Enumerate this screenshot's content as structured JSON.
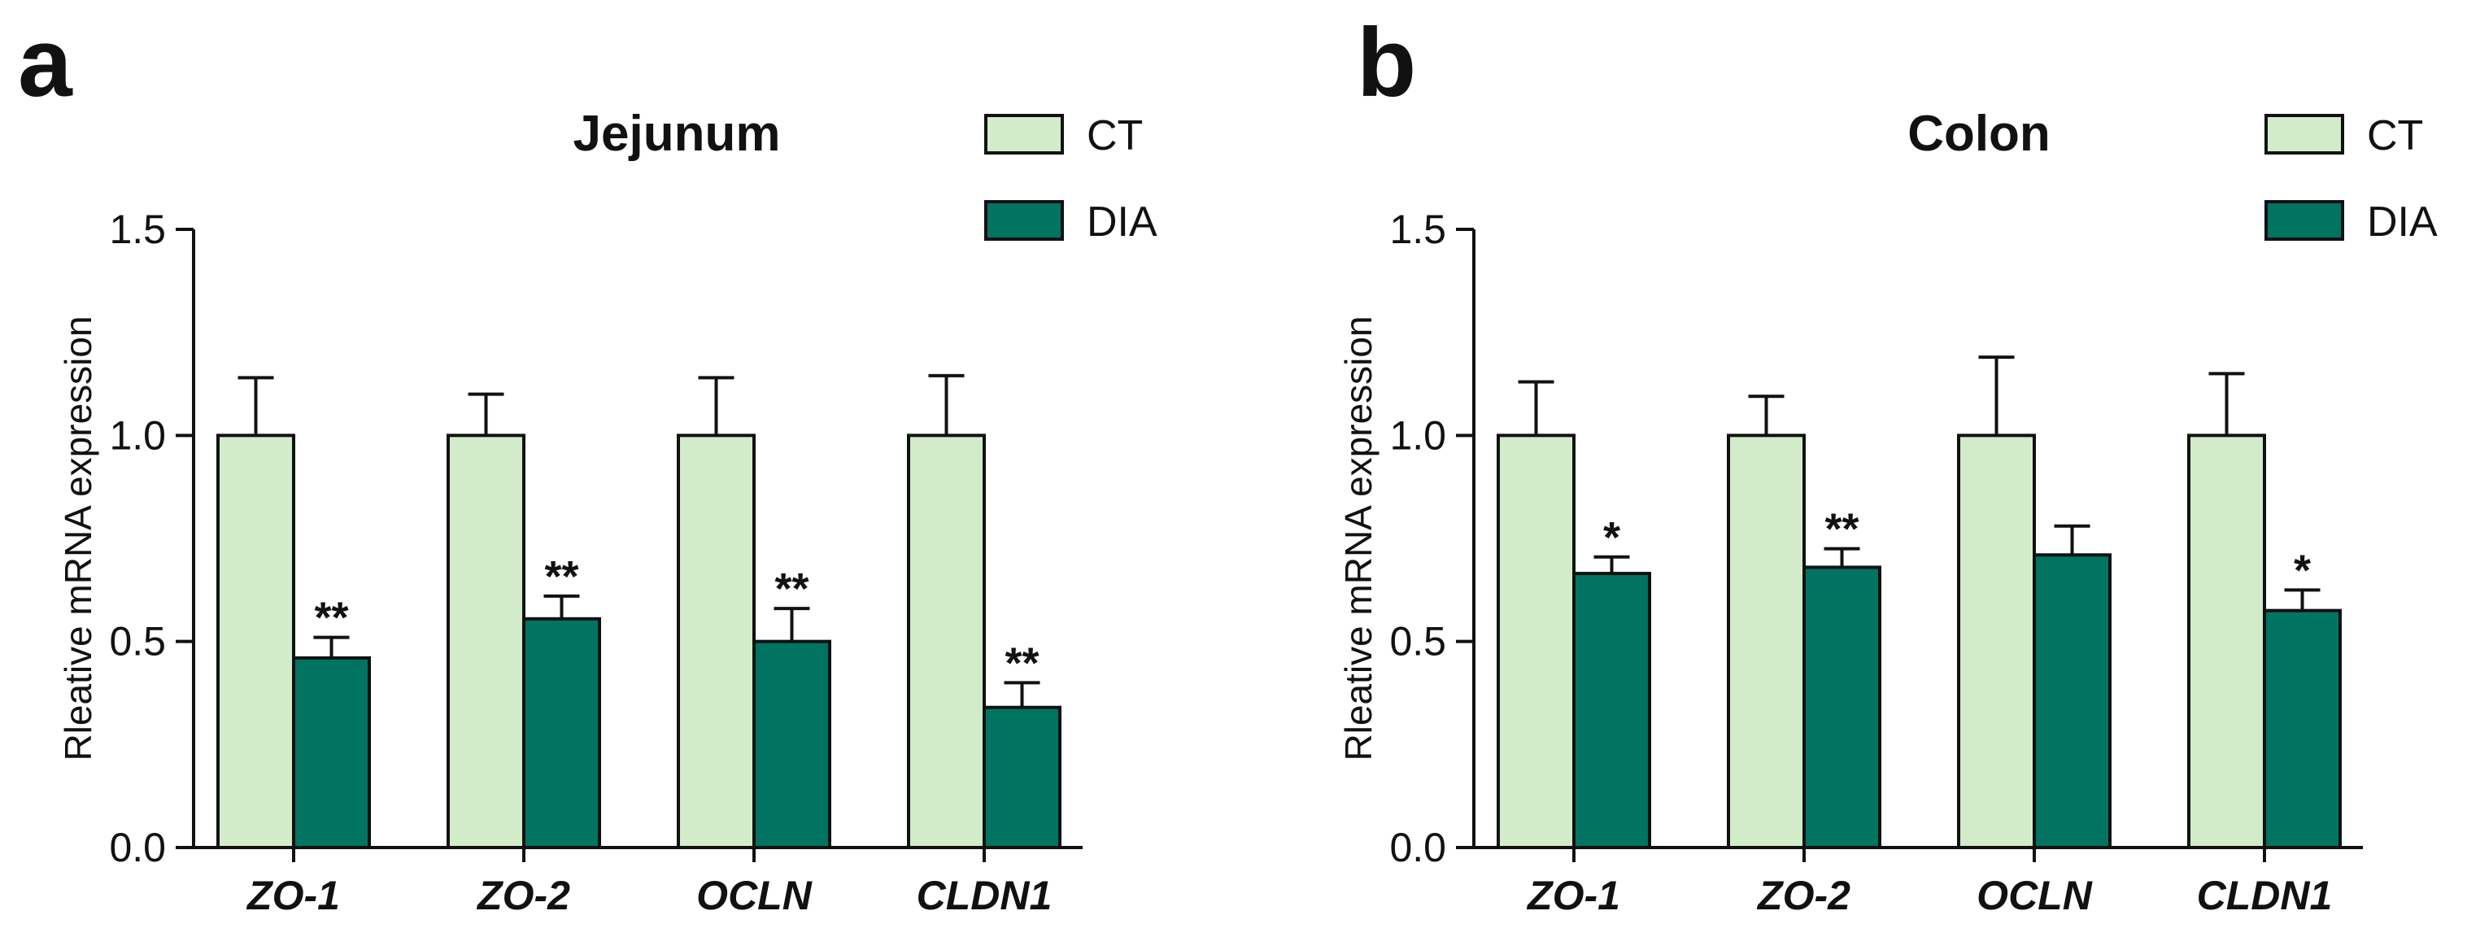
{
  "chart_data": [
    {
      "type": "bar",
      "panel_label": "a",
      "title": "Jejunum",
      "xlabel": "",
      "ylabel": "Rleative mRNA expression",
      "ylim": [
        0,
        1.5
      ],
      "yticks": [
        0,
        0.5,
        1.0,
        1.5
      ],
      "ytick_labels": [
        "0.0",
        "0.5",
        "1.0",
        "1.5"
      ],
      "categories": [
        "ZO-1",
        "ZO-2",
        "OCLN",
        "CLDN1"
      ],
      "series": [
        {
          "name": "CT",
          "color": "#d2ecca",
          "values": [
            1.0,
            1.0,
            1.0,
            1.0
          ],
          "errors": [
            0.14,
            0.1,
            0.14,
            0.145
          ],
          "significance": [
            "",
            "",
            "",
            ""
          ]
        },
        {
          "name": "DIA",
          "color": "#007461",
          "values": [
            0.46,
            0.555,
            0.5,
            0.34
          ],
          "errors": [
            0.05,
            0.055,
            0.08,
            0.06
          ],
          "significance": [
            "**",
            "**",
            "**",
            "**"
          ]
        }
      ],
      "legend_position": "top-right",
      "grid": false
    },
    {
      "type": "bar",
      "panel_label": "b",
      "title": "Colon",
      "xlabel": "",
      "ylabel": "Rleative mRNA expression",
      "ylim": [
        0,
        1.5
      ],
      "yticks": [
        0,
        0.5,
        1.0,
        1.5
      ],
      "ytick_labels": [
        "0.0",
        "0.5",
        "1.0",
        "1.5"
      ],
      "categories": [
        "ZO-1",
        "ZO-2",
        "OCLN",
        "CLDN1"
      ],
      "series": [
        {
          "name": "CT",
          "color": "#d2ecca",
          "values": [
            1.0,
            1.0,
            1.0,
            1.0
          ],
          "errors": [
            0.13,
            0.095,
            0.19,
            0.15
          ],
          "significance": [
            "",
            "",
            "",
            ""
          ]
        },
        {
          "name": "DIA",
          "color": "#007461",
          "values": [
            0.665,
            0.68,
            0.71,
            0.575
          ],
          "errors": [
            0.04,
            0.045,
            0.07,
            0.05
          ],
          "significance": [
            "*",
            "**",
            "",
            "*"
          ]
        }
      ],
      "legend_position": "top-right",
      "grid": false
    }
  ]
}
